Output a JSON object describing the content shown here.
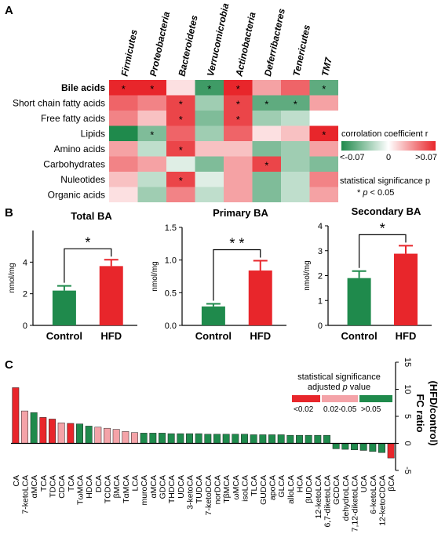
{
  "panel_labels": {
    "a": "A",
    "b": "B",
    "c": "C"
  },
  "chart_data": [
    {
      "type": "heatmap",
      "columns": [
        "Firmicutes",
        "Proteobacteria",
        "Bacteroidetes",
        "Verrucomicrobia",
        "Actinobacteria",
        "Deferribacteres",
        "Tenericutes",
        "TM7"
      ],
      "rows": [
        "Bile acids",
        "Short chain fatty acids",
        "Free fatty acids",
        "Lipids",
        "Amino acids",
        "Carbohydrates",
        "Nuleotides",
        "Organic acids"
      ],
      "values": [
        [
          0.07,
          0.07,
          0.01,
          -0.06,
          0.07,
          0.03,
          0.05,
          -0.05
        ],
        [
          0.05,
          0.04,
          0.06,
          -0.03,
          0.06,
          -0.05,
          -0.05,
          0.03
        ],
        [
          0.04,
          0.02,
          0.06,
          -0.04,
          0.06,
          -0.03,
          -0.02,
          0.0
        ],
        [
          -0.07,
          -0.04,
          0.05,
          -0.03,
          0.05,
          0.01,
          0.02,
          0.07
        ],
        [
          0.03,
          -0.02,
          0.06,
          0.02,
          0.02,
          -0.04,
          -0.03,
          0.03
        ],
        [
          0.04,
          0.03,
          -0.01,
          -0.04,
          0.03,
          0.06,
          -0.03,
          -0.04
        ],
        [
          0.02,
          -0.02,
          0.06,
          -0.01,
          0.03,
          -0.04,
          -0.02,
          0.04
        ],
        [
          0.01,
          -0.03,
          0.04,
          -0.02,
          0.03,
          -0.04,
          -0.02,
          0.03
        ]
      ],
      "significant": [
        [
          1,
          1,
          0,
          1,
          1,
          0,
          0,
          1
        ],
        [
          0,
          0,
          1,
          0,
          1,
          1,
          1,
          0
        ],
        [
          0,
          0,
          1,
          0,
          1,
          0,
          0,
          0
        ],
        [
          0,
          1,
          0,
          0,
          0,
          0,
          0,
          1
        ],
        [
          0,
          0,
          1,
          0,
          0,
          0,
          0,
          0
        ],
        [
          0,
          0,
          0,
          0,
          0,
          1,
          0,
          0
        ],
        [
          0,
          0,
          1,
          0,
          0,
          0,
          0,
          0
        ],
        [
          0,
          0,
          0,
          0,
          0,
          0,
          0,
          0
        ]
      ],
      "bold_row": "Bile acids",
      "star_label": "*",
      "legend": {
        "title": "corrolation coefficient r",
        "min_label": "<-0.07",
        "mid_label": "0",
        "max_label": ">0.07",
        "sig_title": "statistical significance p",
        "sig_star": "*",
        "sig_p": "p",
        "sig_rest": "< 0.05"
      },
      "colors": {
        "negative": "#1f8a4c",
        "neutral": "#ffffff",
        "positive": "#e8262b"
      },
      "range": [
        -0.07,
        0.07
      ]
    },
    {
      "type": "bar",
      "title": "Total BA",
      "ylabel": "nmol/mg",
      "categories": [
        "Control",
        "HFD"
      ],
      "values": [
        2.2,
        3.75
      ],
      "errors": [
        0.3,
        0.4
      ],
      "ylim": [
        0,
        6
      ],
      "yticks": [
        "0",
        "2",
        "4"
      ],
      "ytick_values": [
        0,
        2,
        4
      ],
      "significance": "*",
      "colors": [
        "#1f8a4c",
        "#e8262b"
      ]
    },
    {
      "type": "bar",
      "title": "Primary BA",
      "ylabel": "nmol/mg",
      "categories": [
        "Control",
        "HFD"
      ],
      "values": [
        0.29,
        0.84
      ],
      "errors": [
        0.04,
        0.15
      ],
      "ylim": [
        0,
        1.5
      ],
      "yticks": [
        "0.0",
        "0.5",
        "1.0",
        "1.5"
      ],
      "ytick_values": [
        0,
        0.5,
        1.0,
        1.5
      ],
      "significance": "* *",
      "colors": [
        "#1f8a4c",
        "#e8262b"
      ]
    },
    {
      "type": "bar",
      "title": "Secondary BA",
      "ylabel": "nmol/mg",
      "categories": [
        "Control",
        "HFD"
      ],
      "values": [
        1.9,
        2.88
      ],
      "errors": [
        0.28,
        0.32
      ],
      "ylim": [
        0,
        4
      ],
      "yticks": [
        "0",
        "1",
        "2",
        "3",
        "4"
      ],
      "ytick_values": [
        0,
        1,
        2,
        3,
        4
      ],
      "significance": "*",
      "colors": [
        "#1f8a4c",
        "#e8262b"
      ]
    },
    {
      "type": "bar",
      "ylabel": "FC ratio (HFD/control)",
      "ylabel_lines": [
        "FC ratio",
        "(HFD/control)"
      ],
      "ylim": [
        -5,
        15
      ],
      "yticks": [
        "-5",
        "0",
        "5",
        "10",
        "15"
      ],
      "ytick_values": [
        -5,
        0,
        5,
        10,
        15
      ],
      "categories": [
        "CA",
        "7-ketoLCA",
        "αMCA",
        "TCA",
        "TDCA",
        "CDCA",
        "TCA",
        "TωMCA",
        "HDCA",
        "DCA",
        "TCDCA",
        "βMCA",
        "TαMCA",
        "LCA",
        "muroCA",
        "αMCA",
        "GDCA",
        "THDCA",
        "UDCA",
        "3-ketoCA",
        "TUDCA",
        "7-ketoDCA",
        "norDCA",
        "TβMCA",
        "ωMCA",
        "isoLCA",
        "TLCA",
        "GUDCA",
        "apoCA",
        "GLCA",
        "alloLCA",
        "HCA",
        "βUDCA",
        "12-ketoLCA",
        "6,7-diketoLCA",
        "GCDCA",
        "dehydroLCA",
        "7,12-diketoLCA",
        "UCA",
        "6-ketoLCA",
        "12-ketoCDCA",
        "βCA"
      ],
      "values": [
        10.3,
        6.0,
        5.7,
        4.8,
        4.5,
        3.8,
        3.7,
        3.6,
        3.2,
        3.0,
        2.8,
        2.6,
        2.2,
        2.0,
        1.9,
        1.9,
        1.9,
        1.8,
        1.8,
        1.8,
        1.8,
        1.7,
        1.7,
        1.7,
        1.7,
        1.7,
        1.6,
        1.6,
        1.6,
        1.6,
        1.5,
        1.5,
        1.5,
        1.5,
        1.5,
        -1.0,
        -1.1,
        -1.2,
        -1.3,
        -1.5,
        -1.7,
        -2.7
      ],
      "groups": [
        0,
        1,
        2,
        0,
        0,
        1,
        0,
        2,
        2,
        1,
        1,
        1,
        1,
        1,
        2,
        2,
        2,
        2,
        2,
        2,
        2,
        2,
        2,
        2,
        2,
        2,
        2,
        2,
        2,
        2,
        2,
        2,
        2,
        2,
        2,
        2,
        2,
        2,
        2,
        2,
        2,
        0
      ],
      "legend": {
        "title_line1": "statistical significance",
        "title_line2_pre": "adjusted",
        "title_line2_p": "p",
        "title_line2_post": "value",
        "labels": [
          "<0.02",
          "0.02-0.05",
          ">0.05"
        ],
        "colors": [
          "#e8262b",
          "#f4a3a8",
          "#1f8a4c"
        ]
      }
    }
  ]
}
